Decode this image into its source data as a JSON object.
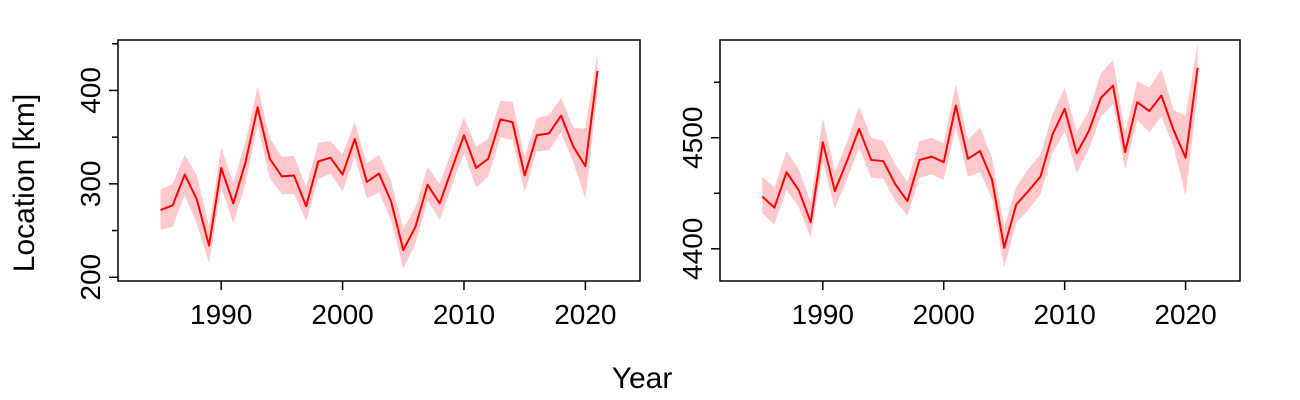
{
  "figure": {
    "xlabel": "Year",
    "ylabel": "Location [km]"
  },
  "chart_data": [
    {
      "type": "line",
      "title": "",
      "xlabel": "",
      "ylabel": "Location [km]",
      "xlim": [
        1981.5,
        2024.5
      ],
      "ylim": [
        196,
        454
      ],
      "xticks": [
        1990,
        2000,
        2010,
        2020
      ],
      "yticks_labeled": [
        200,
        300,
        400
      ],
      "yticks_minor": [
        250,
        350,
        450
      ],
      "grid": false,
      "line_color": "#ff0000",
      "band_color": "#ffc8cc",
      "x": [
        1985,
        1986,
        1987,
        1988,
        1989,
        1990,
        1991,
        1992,
        1993,
        1994,
        1995,
        1996,
        1997,
        1998,
        1999,
        2000,
        2001,
        2002,
        2003,
        2004,
        2005,
        2006,
        2007,
        2008,
        2009,
        2010,
        2011,
        2012,
        2013,
        2014,
        2015,
        2016,
        2017,
        2018,
        2019,
        2020,
        2021
      ],
      "series": [
        {
          "values": [
            272,
            277,
            310,
            283,
            234,
            317,
            279,
            323,
            382,
            327,
            308,
            309,
            276,
            324,
            328,
            310,
            348,
            302,
            311,
            281,
            229,
            254,
            299,
            279,
            316,
            352,
            317,
            327,
            369,
            366,
            309,
            352,
            354,
            373,
            340,
            319,
            421
          ],
          "lower": [
            251,
            254,
            288,
            257,
            215,
            296,
            258,
            300,
            363,
            306,
            289,
            289,
            260,
            305,
            311,
            292,
            329,
            284,
            291,
            261,
            209,
            236,
            282,
            261,
            298,
            333,
            296,
            308,
            350,
            347,
            291,
            335,
            336,
            355,
            323,
            284,
            398
          ],
          "upper": [
            294,
            300,
            331,
            309,
            255,
            339,
            301,
            345,
            404,
            349,
            329,
            330,
            297,
            344,
            346,
            331,
            366,
            322,
            331,
            303,
            252,
            275,
            318,
            300,
            336,
            371,
            340,
            348,
            389,
            388,
            329,
            370,
            374,
            392,
            360,
            359,
            441
          ]
        }
      ]
    },
    {
      "type": "line",
      "title": "",
      "xlabel": "",
      "ylabel": "",
      "xlim": [
        1981.5,
        2024.5
      ],
      "ylim": [
        4371,
        4588
      ],
      "xticks": [
        1990,
        2000,
        2010,
        2020
      ],
      "yticks_labeled": [
        4400,
        4500
      ],
      "yticks_minor": [
        4450,
        4550
      ],
      "grid": false,
      "line_color": "#ff0000",
      "band_color": "#ffc8cc",
      "x": [
        1985,
        1986,
        1987,
        1988,
        1989,
        1990,
        1991,
        1992,
        1993,
        1994,
        1995,
        1996,
        1997,
        1998,
        1999,
        2000,
        2001,
        2002,
        2003,
        2004,
        2005,
        2006,
        2007,
        2008,
        2009,
        2010,
        2011,
        2012,
        2013,
        2014,
        2015,
        2016,
        2017,
        2018,
        2019,
        2020,
        2021
      ],
      "series": [
        {
          "values": [
            4447,
            4437,
            4469,
            4453,
            4424,
            4496,
            4452,
            4479,
            4508,
            4480,
            4479,
            4458,
            4443,
            4480,
            4483,
            4478,
            4529,
            4481,
            4488,
            4462,
            4401,
            4440,
            4452,
            4465,
            4503,
            4526,
            4486,
            4506,
            4536,
            4547,
            4487,
            4532,
            4524,
            4538,
            4507,
            4482,
            4563
          ],
          "lower": [
            4432,
            4422,
            4453,
            4438,
            4410,
            4478,
            4436,
            4463,
            4491,
            4464,
            4463,
            4443,
            4430,
            4464,
            4467,
            4462,
            4509,
            4465,
            4469,
            4445,
            4383,
            4424,
            4435,
            4449,
            4486,
            4506,
            4468,
            4490,
            4519,
            4530,
            4471,
            4516,
            4505,
            4519,
            4492,
            4448,
            4540
          ],
          "upper": [
            4465,
            4455,
            4488,
            4472,
            4442,
            4518,
            4470,
            4496,
            4528,
            4500,
            4497,
            4476,
            4460,
            4497,
            4500,
            4495,
            4548,
            4498,
            4509,
            4482,
            4420,
            4456,
            4472,
            4485,
            4521,
            4545,
            4505,
            4524,
            4558,
            4570,
            4505,
            4551,
            4545,
            4562,
            4525,
            4520,
            4585
          ]
        }
      ]
    }
  ]
}
